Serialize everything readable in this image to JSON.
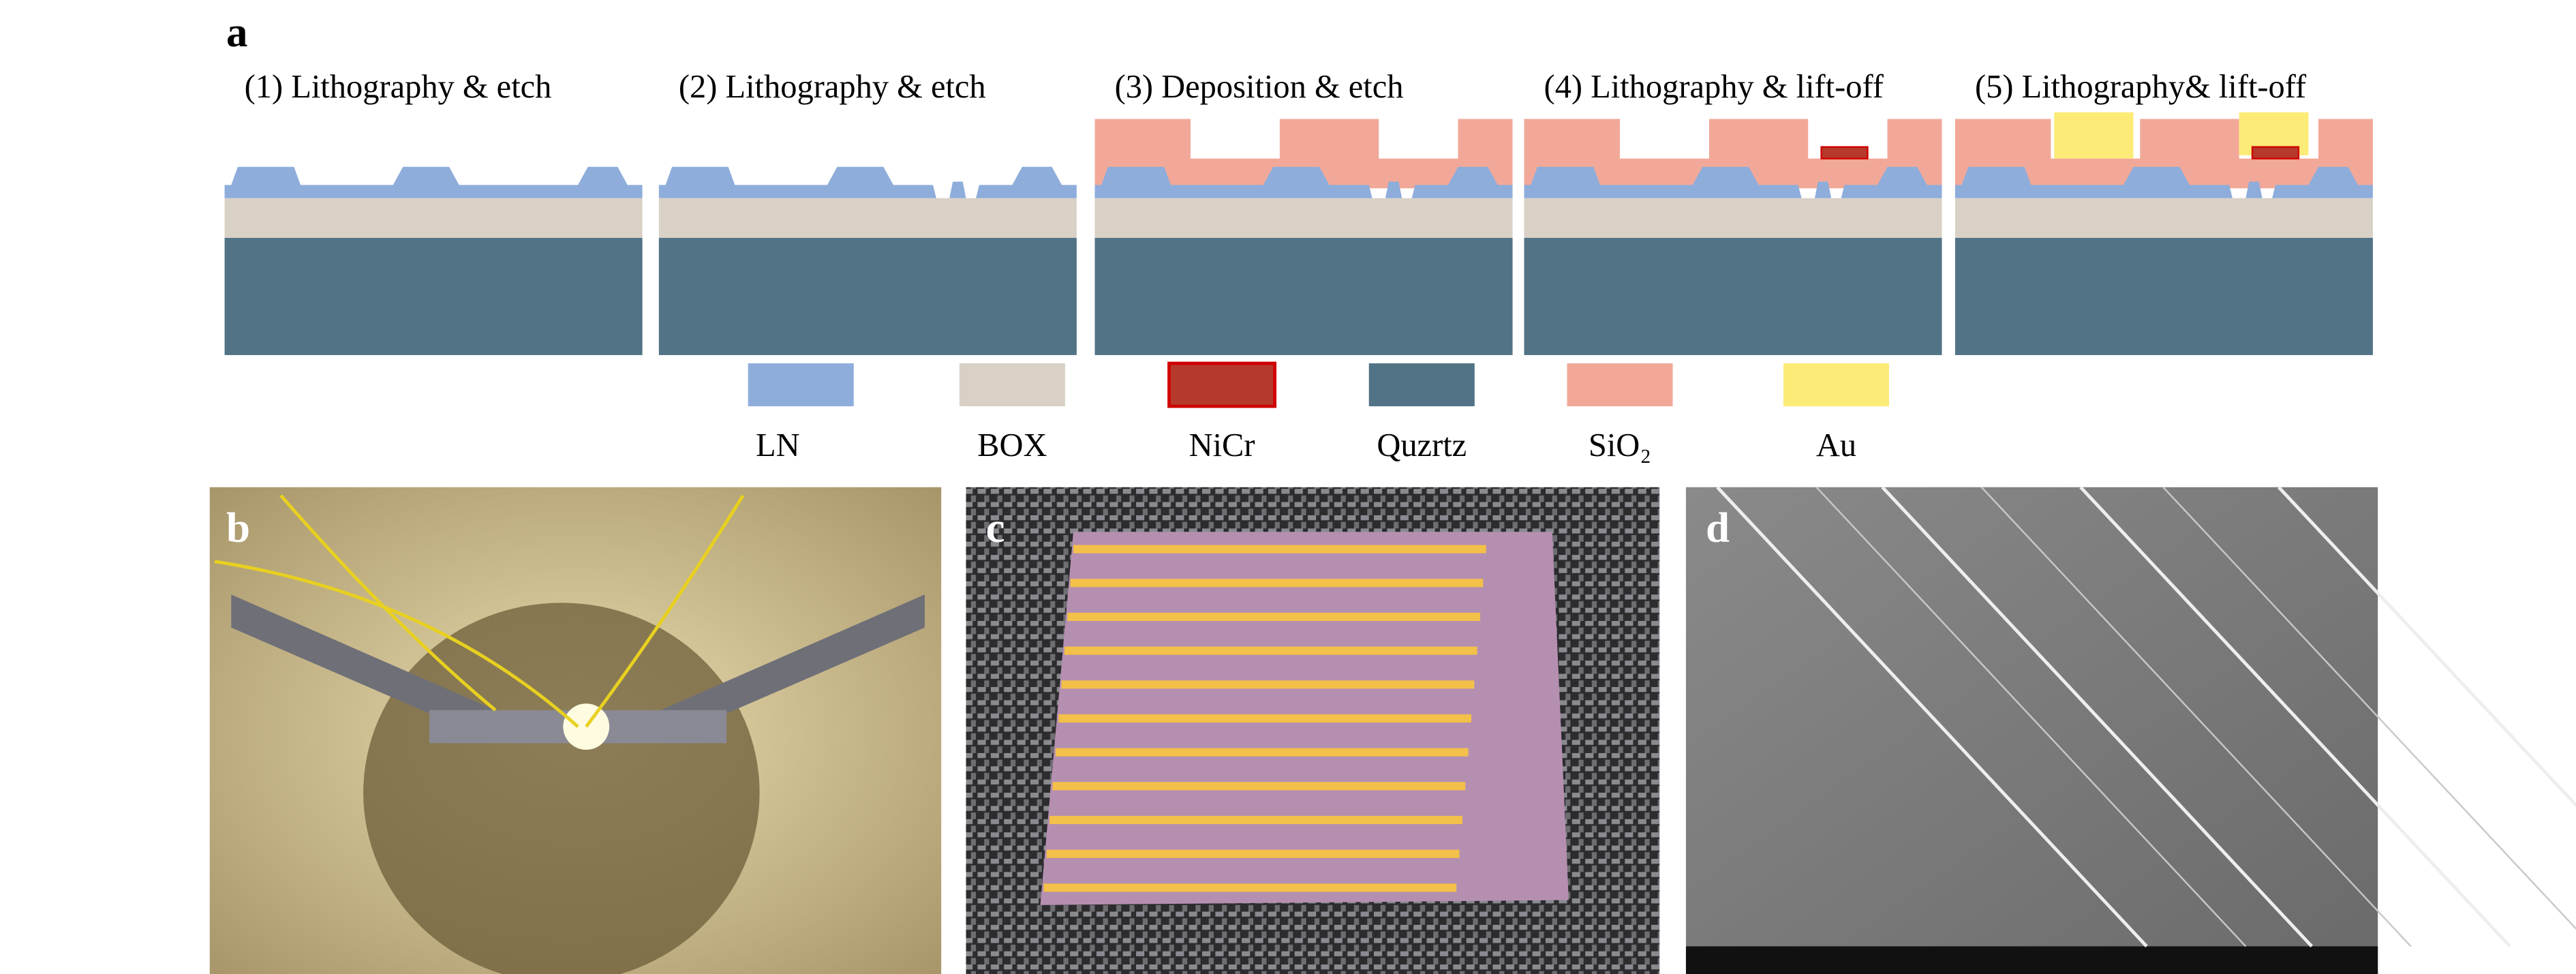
{
  "panel_a": {
    "label": "a",
    "steps": [
      "(1) Lithography & etch",
      "(2) Lithography & etch",
      "(3) Deposition & etch",
      "(4) Lithography & lift-off",
      "(5) Lithography& lift-off"
    ],
    "legend": [
      "LN",
      "BOX",
      "NiCr",
      "Quzrtz",
      "SiO₂",
      "Au"
    ]
  },
  "panel_b": {
    "label": "b"
  },
  "panel_c": {
    "label": "c"
  },
  "panel_d": {
    "label": "d"
  }
}
